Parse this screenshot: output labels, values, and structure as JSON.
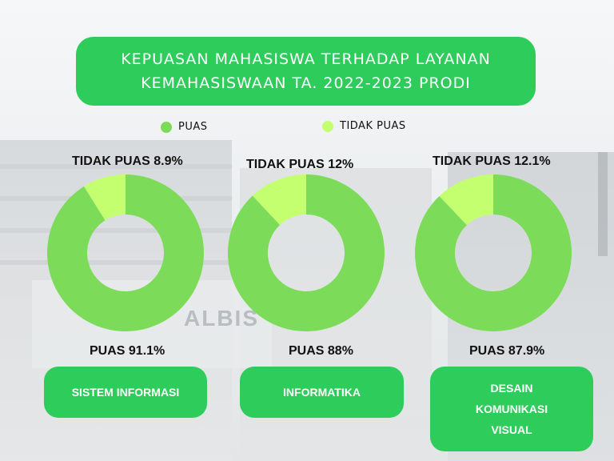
{
  "title": {
    "line1": "KEPUASAN MAHASISWA TERHADAP LAYANAN",
    "line2": "KEMAHASISWAAN TA. 2022-2023 PRODI"
  },
  "legend": [
    {
      "label": "PUAS",
      "color": "#7ddb5a"
    },
    {
      "label": "TIDAK PUAS",
      "color": "#c4ff70"
    }
  ],
  "colors": {
    "puas": "#7ddb5a",
    "tidak_puas": "#c4ff70",
    "accent": "#2ecc5b"
  },
  "chart_data": [
    {
      "type": "pie",
      "category": "SISTEM INFORMASI",
      "slices": [
        {
          "label": "PUAS 91.1%",
          "value": 91.1
        },
        {
          "label": "TIDAK PUAS 8.9%",
          "value": 8.9
        }
      ]
    },
    {
      "type": "pie",
      "category": "INFORMATIKA",
      "slices": [
        {
          "label": "PUAS 88%",
          "value": 88
        },
        {
          "label": "TIDAK PUAS 12%",
          "value": 12
        }
      ]
    },
    {
      "type": "pie",
      "category": "DESAIN KOMUNIKASI VISUAL",
      "category_lines": [
        "DESAIN",
        "KOMUNIKASI",
        "VISUAL"
      ],
      "slices": [
        {
          "label": "PUAS 87.9%",
          "value": 87.9
        },
        {
          "label": "TIDAK PUAS 12.1%",
          "value": 12.1
        }
      ]
    }
  ],
  "background_text": "ALBIS"
}
